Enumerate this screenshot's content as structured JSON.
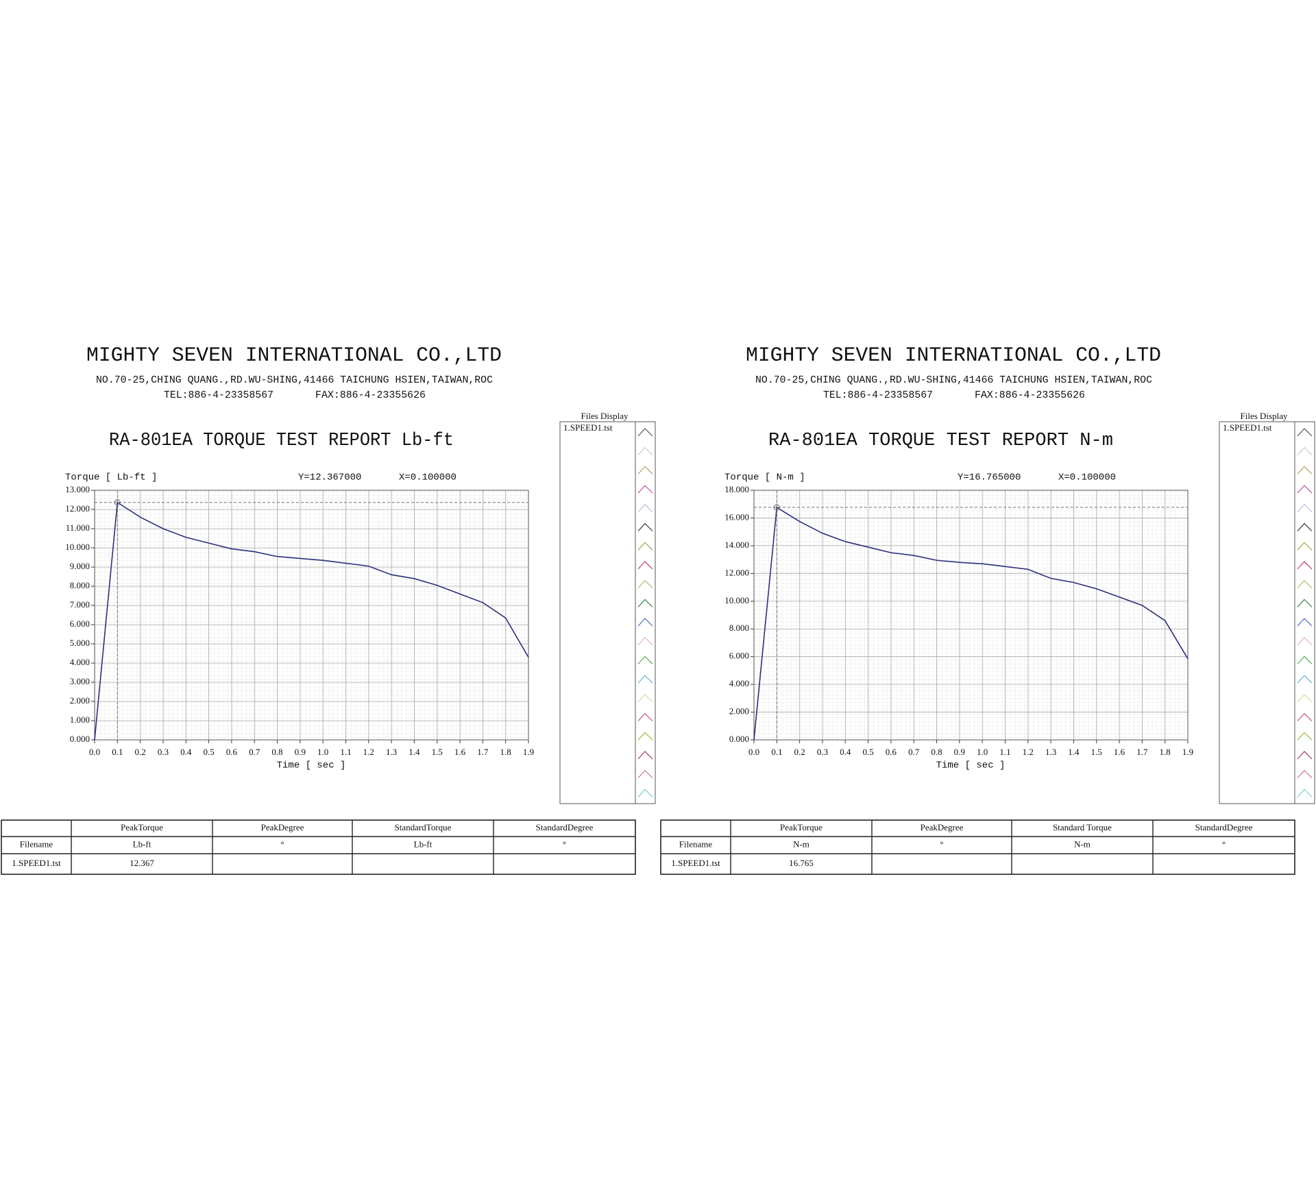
{
  "reports": [
    {
      "company": "MIGHTY SEVEN INTERNATIONAL CO.,LTD",
      "address": "NO.70-25,CHING QUANG.,RD.WU-SHING,41466 TAICHUNG HSIEN,TAIWAN,ROC",
      "tel": "TEL:886-4-23358567",
      "fax": "FAX:886-4-23355626",
      "files_display": "Files Display",
      "table": {
        "header": [
          "PeakTorque",
          "PeakDegree",
          "StandardTorque",
          "StandardDegree"
        ],
        "units": [
          "Filename",
          "Lb-ft",
          "°",
          "Lb-ft",
          "°"
        ],
        "rows": [
          [
            "1.SPEED1.tst",
            "12.367",
            null,
            null,
            null
          ]
        ]
      }
    },
    {
      "company": "MIGHTY SEVEN INTERNATIONAL CO.,LTD",
      "address": "NO.70-25,CHING QUANG.,RD.WU-SHING,41466 TAICHUNG HSIEN,TAIWAN,ROC",
      "tel": "TEL:886-4-23358567",
      "fax": "FAX:886-4-23355626",
      "files_display": "Files Display",
      "table": {
        "header": [
          "PeakTorque",
          "PeakDegree",
          "Standard Torque",
          "StandardDegree"
        ],
        "units": [
          "Filename",
          "N-m",
          "°",
          "N-m",
          "°"
        ],
        "rows": [
          [
            "1.SPEED1.tst",
            "16.765",
            null,
            null,
            null
          ]
        ]
      }
    }
  ],
  "chart_data": [
    {
      "type": "line",
      "title": "RA-801EA TORQUE TEST REPORT Lb-ft",
      "y_label": "Torque [ Lb-ft ]",
      "x_label": "Time [ sec ]",
      "cursor_y": "Y=12.367000",
      "cursor_x": "X=0.100000",
      "x": [
        0,
        0.1,
        0.2,
        0.3,
        0.4,
        0.5,
        0.6,
        0.7,
        0.8,
        0.9,
        1.0,
        1.1,
        1.2,
        1.3,
        1.4,
        1.5,
        1.6,
        1.7,
        1.8,
        1.9
      ],
      "series": [
        {
          "name": "1.SPEED1.tst",
          "color": "#2a2f7c",
          "values": [
            0,
            12.367,
            11.6,
            11.0,
            10.55,
            10.25,
            9.95,
            9.8,
            9.55,
            9.45,
            9.35,
            9.2,
            9.05,
            8.6,
            8.4,
            8.05,
            7.6,
            7.15,
            6.35,
            4.3
          ]
        }
      ],
      "xlim": [
        0,
        1.9
      ],
      "xticks": [
        {
          "value": 0,
          "label": "0.0"
        },
        0.1,
        0.2,
        0.3,
        0.4,
        0.5,
        0.6,
        0.7,
        0.8,
        0.9,
        {
          "value": 1,
          "label": "1.0"
        },
        1.1,
        1.2,
        1.3,
        1.4,
        1.5,
        1.6,
        1.7,
        1.8,
        1.9
      ],
      "ylim": [
        0,
        13
      ],
      "yticks": [
        {
          "value": 0,
          "label": "0.000"
        },
        {
          "value": 1,
          "label": "1.000"
        },
        {
          "value": 2,
          "label": "2.000"
        },
        {
          "value": 3,
          "label": "3.000"
        },
        {
          "value": 4,
          "label": "4.000"
        },
        {
          "value": 5,
          "label": "5.000"
        },
        {
          "value": 6,
          "label": "6.000"
        },
        {
          "value": 7,
          "label": "7.000"
        },
        {
          "value": 8,
          "label": "8.000"
        },
        {
          "value": 9,
          "label": "9.000"
        },
        {
          "value": 10,
          "label": "10.000"
        },
        {
          "value": 11,
          "label": "11.000"
        },
        {
          "value": 12,
          "label": "12.000"
        },
        {
          "value": 13,
          "label": "13.000"
        }
      ],
      "grid": true
    },
    {
      "type": "line",
      "title": "RA-801EA TORQUE TEST REPORT N-m",
      "y_label": "Torque [ N-m ]",
      "x_label": "Time [ sec ]",
      "cursor_y": "Y=16.765000",
      "cursor_x": "X=0.100000",
      "x": [
        0,
        0.1,
        0.2,
        0.3,
        0.4,
        0.5,
        0.6,
        0.7,
        0.8,
        0.9,
        1.0,
        1.1,
        1.2,
        1.3,
        1.4,
        1.5,
        1.6,
        1.7,
        1.8,
        1.9
      ],
      "series": [
        {
          "name": "1.SPEED1.tst",
          "color": "#2a2f7c",
          "values": [
            0,
            16.765,
            15.75,
            14.9,
            14.3,
            13.9,
            13.5,
            13.3,
            12.95,
            12.8,
            12.7,
            12.5,
            12.3,
            11.65,
            11.35,
            10.9,
            10.3,
            9.7,
            8.6,
            5.85
          ]
        }
      ],
      "xlim": [
        0,
        1.9
      ],
      "xticks": [
        {
          "value": 0,
          "label": "0.0"
        },
        0.1,
        0.2,
        0.3,
        0.4,
        0.5,
        0.6,
        0.7,
        0.8,
        0.9,
        {
          "value": 1,
          "label": "1.0"
        },
        1.1,
        1.2,
        1.3,
        1.4,
        1.5,
        1.6,
        1.7,
        1.8,
        1.9
      ],
      "ylim": [
        0,
        18
      ],
      "yticks": [
        {
          "value": 0,
          "label": "0.000"
        },
        {
          "value": 2,
          "label": "2.000"
        },
        {
          "value": 4,
          "label": "4.000"
        },
        {
          "value": 6,
          "label": "6.000"
        },
        {
          "value": 8,
          "label": "8.000"
        },
        {
          "value": 10,
          "label": "10.000"
        },
        {
          "value": 12,
          "label": "12.000"
        },
        {
          "value": 14,
          "label": "14.000"
        },
        {
          "value": 16,
          "label": "16.000"
        },
        {
          "value": 18,
          "label": "18.000"
        }
      ],
      "grid": true
    }
  ]
}
